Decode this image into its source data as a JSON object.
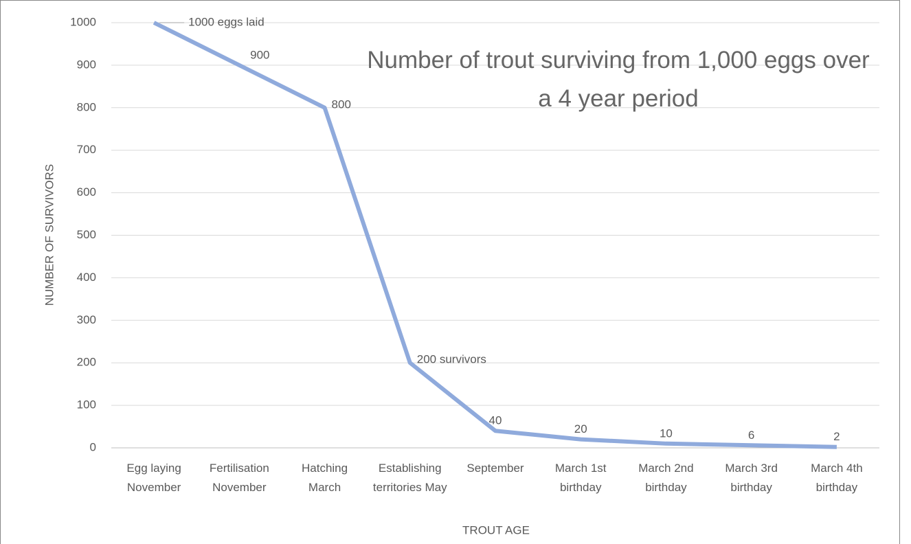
{
  "chart_data": {
    "type": "line",
    "title": "Number of trout surviving from 1,000 eggs over a 4 year period",
    "x_label": "TROUT AGE",
    "y_label": "NUMBER OF SURVIVORS",
    "categories": [
      "Egg laying November",
      "Fertilisation November",
      "Hatching March",
      "Establishing territories May",
      "September",
      "March 1st birthday",
      "March 2nd birthday",
      "March 3rd birthday",
      "March 4th birthday"
    ],
    "values": [
      1000,
      900,
      800,
      200,
      40,
      20,
      10,
      6,
      2
    ],
    "value_labels": [
      "1000 eggs laid",
      "900",
      "800",
      "200 survivors",
      "40",
      "20",
      "10",
      "6",
      "2"
    ],
    "color": "#8faadc",
    "ylim": [
      0,
      1000
    ],
    "yticks": [
      0,
      100,
      200,
      300,
      400,
      500,
      600,
      700,
      800,
      900,
      1000
    ],
    "grid": true
  }
}
